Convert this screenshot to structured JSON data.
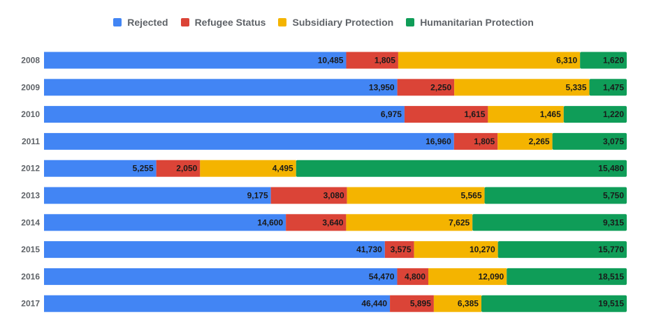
{
  "chart_data": {
    "type": "bar",
    "orientation": "horizontal",
    "stacked": "percent",
    "categories": [
      "2008",
      "2009",
      "2010",
      "2011",
      "2012",
      "2013",
      "2014",
      "2015",
      "2016",
      "2017"
    ],
    "series": [
      {
        "name": "Rejected",
        "color": "#4285f4",
        "values": [
          10485,
          13950,
          6975,
          16960,
          5255,
          9175,
          14600,
          41730,
          54470,
          46440
        ]
      },
      {
        "name": "Refugee Status",
        "color": "#db4437",
        "values": [
          1805,
          2250,
          1615,
          1805,
          2050,
          3080,
          3640,
          3575,
          4800,
          5895
        ]
      },
      {
        "name": "Subsidiary Protection",
        "color": "#f4b400",
        "values": [
          6310,
          5335,
          1465,
          2265,
          4495,
          5565,
          7625,
          10270,
          12090,
          6385
        ]
      },
      {
        "name": "Humanitarian Protection",
        "color": "#0f9d58",
        "values": [
          1620,
          1475,
          1220,
          3075,
          15480,
          5750,
          9315,
          15770,
          18515,
          19515
        ]
      }
    ],
    "legend_position": "top",
    "grid": false
  }
}
